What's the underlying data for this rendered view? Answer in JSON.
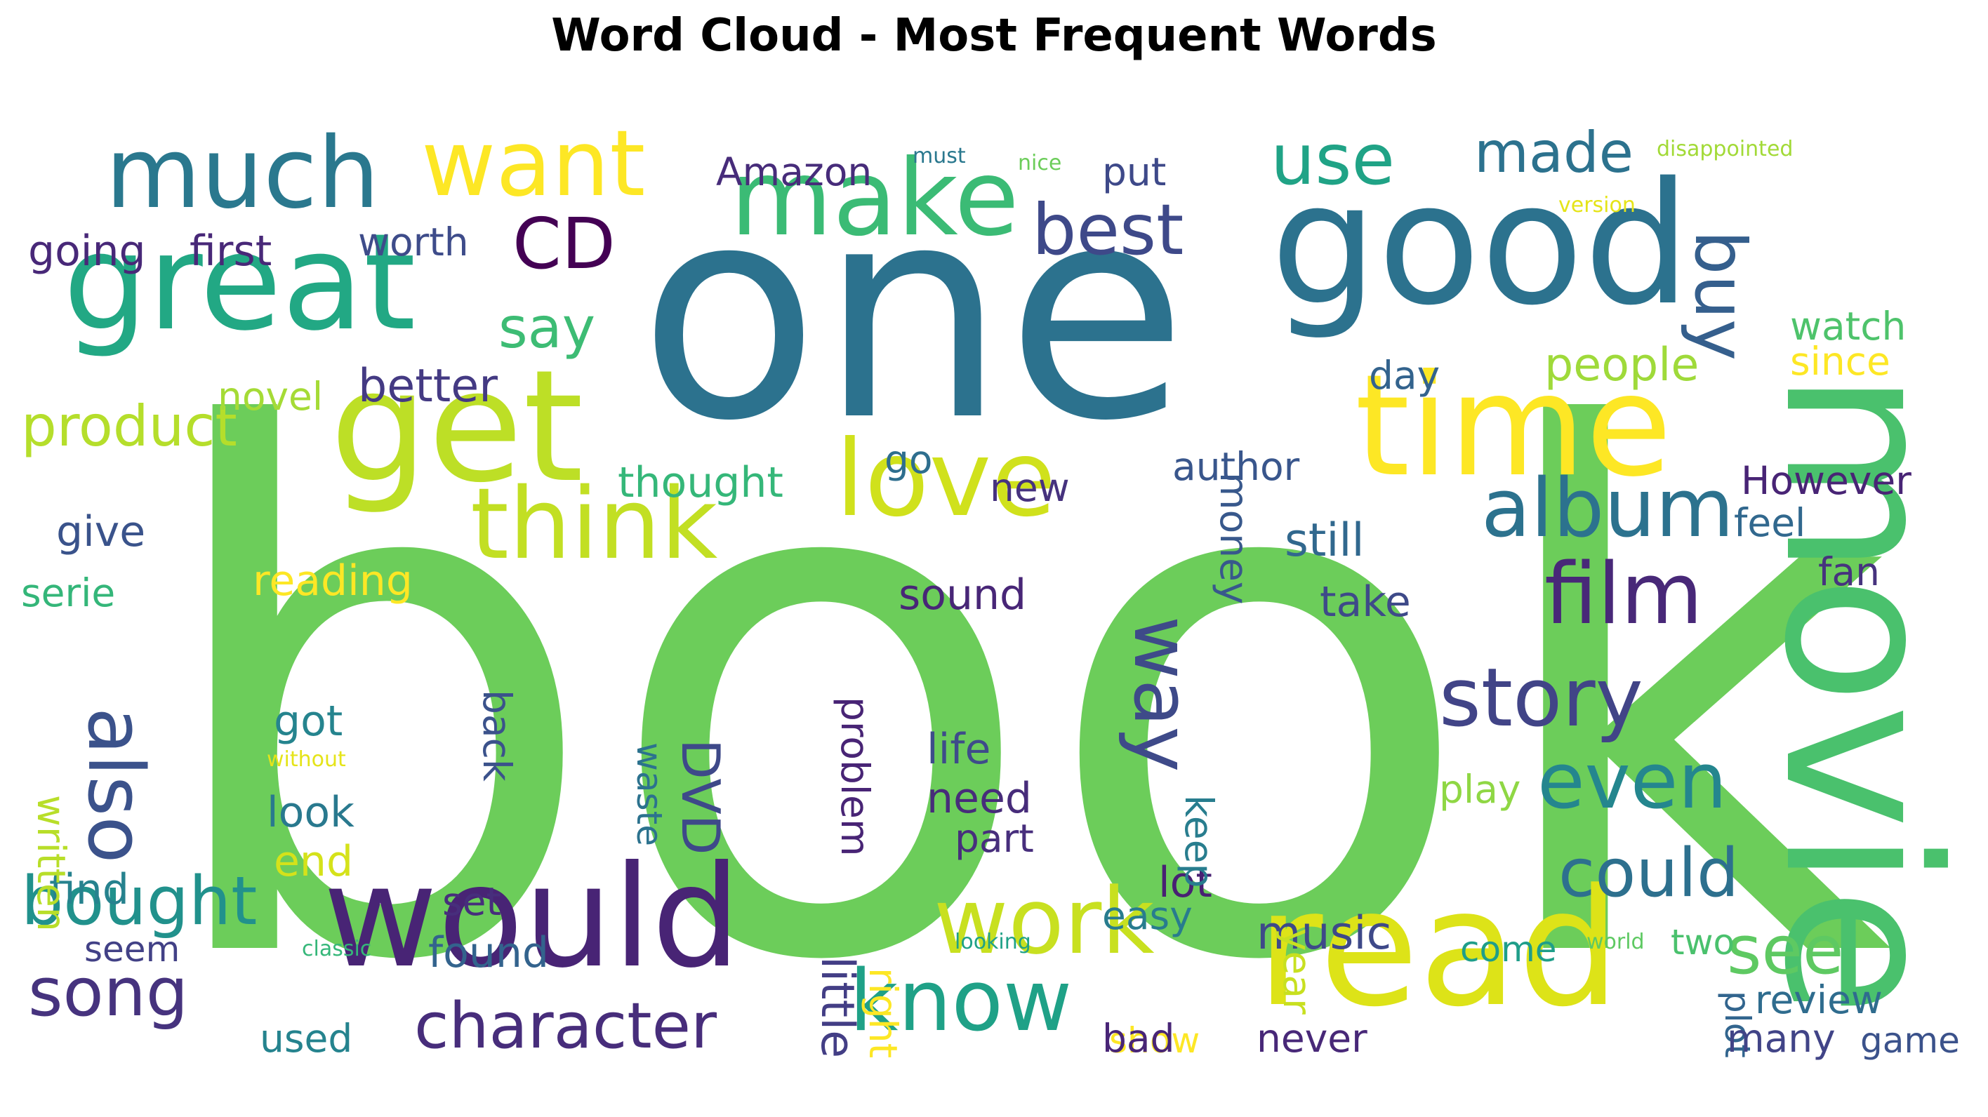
{
  "chart_data": {
    "type": "wordcloud",
    "title": "Word Cloud - Most Frequent Words",
    "words": [
      {
        "text": "book",
        "weight": 100,
        "color": "#6ccd5a"
      },
      {
        "text": "one",
        "weight": 62,
        "color": "#2c728e"
      },
      {
        "text": "movie",
        "weight": 50,
        "color": "#4ac16d"
      },
      {
        "text": "good",
        "weight": 35,
        "color": "#2c728e"
      },
      {
        "text": "read",
        "weight": 34,
        "color": "#dde318"
      },
      {
        "text": "get",
        "weight": 33,
        "color": "#bddf26"
      },
      {
        "text": "time",
        "weight": 30,
        "color": "#fde725"
      },
      {
        "text": "would",
        "weight": 30,
        "color": "#482475"
      },
      {
        "text": "great",
        "weight": 28,
        "color": "#22a884"
      },
      {
        "text": "make",
        "weight": 22,
        "color": "#3bbb75"
      },
      {
        "text": "love",
        "weight": 22,
        "color": "#d0e11c"
      },
      {
        "text": "much",
        "weight": 20,
        "color": "#2a788e"
      },
      {
        "text": "think",
        "weight": 20,
        "color": "#c2df23"
      },
      {
        "text": "want",
        "weight": 19,
        "color": "#fde725"
      },
      {
        "text": "work",
        "weight": 19,
        "color": "#c8e020"
      },
      {
        "text": "know",
        "weight": 18,
        "color": "#1fa187"
      },
      {
        "text": "film",
        "weight": 18,
        "color": "#482878"
      },
      {
        "text": "album",
        "weight": 17,
        "color": "#2c728e"
      },
      {
        "text": "story",
        "weight": 17,
        "color": "#414487"
      },
      {
        "text": "even",
        "weight": 16,
        "color": "#24868e"
      },
      {
        "text": "also",
        "weight": 16,
        "color": "#3b528b"
      },
      {
        "text": "way",
        "weight": 16,
        "color": "#3e4a89"
      },
      {
        "text": "use",
        "weight": 15,
        "color": "#20a386"
      },
      {
        "text": "CD",
        "weight": 15,
        "color": "#440154"
      },
      {
        "text": "best",
        "weight": 14,
        "color": "#3e4989"
      },
      {
        "text": "buy",
        "weight": 14,
        "color": "#355f8d"
      },
      {
        "text": "bought",
        "weight": 14,
        "color": "#21918c"
      },
      {
        "text": "song",
        "weight": 14,
        "color": "#46337e"
      },
      {
        "text": "could",
        "weight": 14,
        "color": "#2d708e"
      },
      {
        "text": "see",
        "weight": 14,
        "color": "#5ec962"
      },
      {
        "text": "character",
        "weight": 13,
        "color": "#472d7b"
      },
      {
        "text": "made",
        "weight": 12,
        "color": "#2c728e"
      },
      {
        "text": "product",
        "weight": 12,
        "color": "#b5de2b"
      },
      {
        "text": "say",
        "weight": 11,
        "color": "#3dbc74"
      },
      {
        "text": "DVD",
        "weight": 11,
        "color": "#3e4989"
      },
      {
        "text": "people",
        "weight": 10,
        "color": "#9fda3a"
      },
      {
        "text": "better",
        "weight": 10,
        "color": "#443a83"
      },
      {
        "text": "music",
        "weight": 10,
        "color": "#3e4989"
      },
      {
        "text": "still",
        "weight": 10,
        "color": "#31688e"
      },
      {
        "text": "little",
        "weight": 10,
        "color": "#433e85"
      },
      {
        "text": "find",
        "weight": 9,
        "color": "#26828e"
      },
      {
        "text": "going",
        "weight": 9,
        "color": "#482878"
      },
      {
        "text": "first",
        "weight": 9,
        "color": "#482878"
      },
      {
        "text": "thought",
        "weight": 9,
        "color": "#35b779"
      },
      {
        "text": "Amazon",
        "weight": 8,
        "color": "#472c7a"
      },
      {
        "text": "worth",
        "weight": 8,
        "color": "#3e4c8a"
      },
      {
        "text": "put",
        "weight": 8,
        "color": "#3e4989"
      },
      {
        "text": "watch",
        "weight": 8,
        "color": "#4ec36b"
      },
      {
        "text": "money",
        "weight": 8,
        "color": "#38588c"
      },
      {
        "text": "author",
        "weight": 8,
        "color": "#39568c"
      },
      {
        "text": "However",
        "weight": 8,
        "color": "#482475"
      },
      {
        "text": "give",
        "weight": 8,
        "color": "#3a538b"
      },
      {
        "text": "reading",
        "weight": 8,
        "color": "#fde725"
      },
      {
        "text": "got",
        "weight": 8,
        "color": "#25848e"
      },
      {
        "text": "life",
        "weight": 8,
        "color": "#3e4c8a"
      },
      {
        "text": "need",
        "weight": 8,
        "color": "#472c7a"
      },
      {
        "text": "look",
        "weight": 8,
        "color": "#29798e"
      },
      {
        "text": "end",
        "weight": 8,
        "color": "#d5e21a"
      },
      {
        "text": "sound",
        "weight": 8,
        "color": "#482677"
      },
      {
        "text": "take",
        "weight": 8,
        "color": "#3e4a89"
      },
      {
        "text": "feel",
        "weight": 7,
        "color": "#31688e"
      },
      {
        "text": "lot",
        "weight": 7,
        "color": "#482173"
      },
      {
        "text": "found",
        "weight": 7,
        "color": "#33638d"
      },
      {
        "text": "novel",
        "weight": 7,
        "color": "#a5db36"
      },
      {
        "text": "day",
        "weight": 7,
        "color": "#33638d"
      },
      {
        "text": "since",
        "weight": 7,
        "color": "#fde725"
      },
      {
        "text": "new",
        "weight": 7,
        "color": "#46327e"
      },
      {
        "text": "go",
        "weight": 7,
        "color": "#2e6e8e"
      },
      {
        "text": "serie",
        "weight": 7,
        "color": "#34b679"
      },
      {
        "text": "fan",
        "weight": 7,
        "color": "#46337e"
      },
      {
        "text": "problem",
        "weight": 7,
        "color": "#482475"
      },
      {
        "text": "waste",
        "weight": 7,
        "color": "#2c728e"
      },
      {
        "text": "back",
        "weight": 7,
        "color": "#3b528b"
      },
      {
        "text": "written",
        "weight": 7,
        "color": "#b8de29"
      },
      {
        "text": "keep",
        "weight": 7,
        "color": "#287d8e"
      },
      {
        "text": "play",
        "weight": 7,
        "color": "#8fd744"
      },
      {
        "text": "part",
        "weight": 7,
        "color": "#472e7c"
      },
      {
        "text": "set",
        "weight": 7,
        "color": "#472e7c"
      },
      {
        "text": "easy",
        "weight": 7,
        "color": "#287c8e"
      },
      {
        "text": "right",
        "weight": 7,
        "color": "#fde725"
      },
      {
        "text": "year",
        "weight": 7,
        "color": "#c8e020"
      },
      {
        "text": "come",
        "weight": 7,
        "color": "#1f9e89"
      },
      {
        "text": "two",
        "weight": 7,
        "color": "#4ac16d"
      },
      {
        "text": "seem",
        "weight": 7,
        "color": "#424186"
      },
      {
        "text": "plot",
        "weight": 7,
        "color": "#32658e"
      },
      {
        "text": "review",
        "weight": 7,
        "color": "#2f6c8e"
      },
      {
        "text": "show",
        "weight": 7,
        "color": "#fde725"
      },
      {
        "text": "used",
        "weight": 7,
        "color": "#25838e"
      },
      {
        "text": "bad",
        "weight": 7,
        "color": "#482576"
      },
      {
        "text": "never",
        "weight": 7,
        "color": "#482878"
      },
      {
        "text": "many",
        "weight": 7,
        "color": "#414487"
      },
      {
        "text": "game",
        "weight": 6,
        "color": "#3b528b"
      },
      {
        "text": "must",
        "weight": 4,
        "color": "#2a788e"
      },
      {
        "text": "nice",
        "weight": 4,
        "color": "#6ccd5a"
      },
      {
        "text": "disappointed",
        "weight": 4,
        "color": "#a2da37"
      },
      {
        "text": "version",
        "weight": 4,
        "color": "#e5e419"
      },
      {
        "text": "without",
        "weight": 4,
        "color": "#e5e419"
      },
      {
        "text": "classic",
        "weight": 4,
        "color": "#35b779"
      },
      {
        "text": "looking",
        "weight": 4,
        "color": "#1fa187"
      },
      {
        "text": "world",
        "weight": 4,
        "color": "#5ec962"
      }
    ]
  }
}
